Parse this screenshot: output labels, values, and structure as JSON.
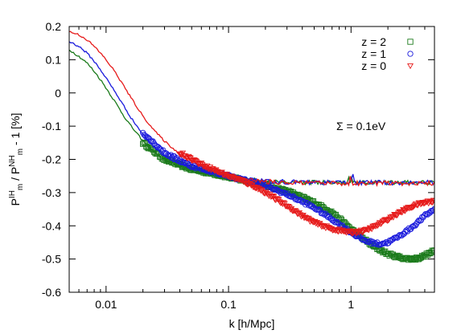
{
  "chart_data": {
    "type": "line",
    "xlabel": "k [h/Mpc]",
    "ylabel": {
      "base1": "P",
      "sub1": "m",
      "sup1": "IH",
      "mid": " / P",
      "sub2": "m",
      "sup2": "NH",
      "tail": " - 1 [%]"
    },
    "xscale": "log",
    "xlim": [
      0.005,
      4.8
    ],
    "ylim": [
      -0.6,
      0.2
    ],
    "xticks": [
      {
        "value": 0.01,
        "label": "0.01"
      },
      {
        "value": 0.1,
        "label": "0.1"
      },
      {
        "value": 1,
        "label": "1"
      }
    ],
    "yticks": [
      {
        "value": 0.2,
        "label": "0.2"
      },
      {
        "value": 0.1,
        "label": "0.1"
      },
      {
        "value": 0,
        "label": "0"
      },
      {
        "value": -0.1,
        "label": "-0.1"
      },
      {
        "value": -0.2,
        "label": "-0.2"
      },
      {
        "value": -0.3,
        "label": "-0.3"
      },
      {
        "value": -0.4,
        "label": "-0.4"
      },
      {
        "value": -0.5,
        "label": "-0.5"
      },
      {
        "value": -0.6,
        "label": "-0.6"
      }
    ],
    "grid": false,
    "legend_position": "top-right",
    "annotation": "Σ = 0.1eV",
    "series": [
      {
        "name": "z = 2",
        "color": "#1a7a1a",
        "marker": "square",
        "linear": {
          "x": [
            0.005,
            0.006,
            0.007,
            0.008,
            0.009,
            0.01,
            0.012,
            0.014,
            0.016,
            0.02,
            0.025,
            0.03,
            0.04,
            0.05,
            0.07,
            0.1,
            0.15,
            0.2,
            0.3,
            0.5,
            1,
            2,
            3,
            4.8
          ],
          "y": [
            0.13,
            0.11,
            0.09,
            0.065,
            0.04,
            0.015,
            -0.03,
            -0.07,
            -0.1,
            -0.145,
            -0.18,
            -0.2,
            -0.225,
            -0.235,
            -0.245,
            -0.255,
            -0.262,
            -0.265,
            -0.268,
            -0.27,
            -0.27,
            -0.27,
            -0.27,
            -0.27
          ]
        },
        "nonlinear": {
          "x": [
            0.02,
            0.03,
            0.05,
            0.08,
            0.12,
            0.16,
            0.2,
            0.3,
            0.5,
            0.7,
            1,
            1.5,
            2,
            2.5,
            3,
            3.5,
            4,
            4.8
          ],
          "y": [
            -0.15,
            -0.2,
            -0.23,
            -0.245,
            -0.26,
            -0.27,
            -0.278,
            -0.295,
            -0.33,
            -0.36,
            -0.41,
            -0.46,
            -0.485,
            -0.495,
            -0.5,
            -0.498,
            -0.49,
            -0.475
          ]
        }
      },
      {
        "name": "z = 1",
        "color": "#1a1adc",
        "marker": "circle",
        "linear": {
          "x": [
            0.005,
            0.006,
            0.007,
            0.008,
            0.009,
            0.01,
            0.012,
            0.014,
            0.016,
            0.02,
            0.025,
            0.03,
            0.04,
            0.05,
            0.07,
            0.1,
            0.15,
            0.2,
            0.3,
            0.5,
            1,
            2,
            3,
            4.8
          ],
          "y": [
            0.155,
            0.14,
            0.12,
            0.095,
            0.07,
            0.045,
            0.0,
            -0.04,
            -0.075,
            -0.125,
            -0.165,
            -0.19,
            -0.215,
            -0.228,
            -0.24,
            -0.253,
            -0.262,
            -0.266,
            -0.268,
            -0.27,
            -0.27,
            -0.27,
            -0.27,
            -0.27
          ]
        },
        "nonlinear": {
          "x": [
            0.02,
            0.03,
            0.05,
            0.08,
            0.12,
            0.16,
            0.2,
            0.3,
            0.5,
            0.7,
            1,
            1.3,
            1.7,
            2,
            2.5,
            3,
            3.5,
            4,
            4.8
          ],
          "y": [
            -0.12,
            -0.18,
            -0.22,
            -0.24,
            -0.258,
            -0.27,
            -0.28,
            -0.305,
            -0.345,
            -0.38,
            -0.42,
            -0.445,
            -0.455,
            -0.45,
            -0.43,
            -0.41,
            -0.39,
            -0.37,
            -0.35
          ]
        }
      },
      {
        "name": "z = 0",
        "color": "#e61a1a",
        "marker": "triangle-down",
        "linear": {
          "x": [
            0.005,
            0.006,
            0.007,
            0.008,
            0.009,
            0.01,
            0.012,
            0.014,
            0.016,
            0.02,
            0.025,
            0.03,
            0.04,
            0.05,
            0.07,
            0.1,
            0.15,
            0.2,
            0.3,
            0.5,
            1,
            2,
            3,
            4.8
          ],
          "y": [
            0.185,
            0.175,
            0.16,
            0.14,
            0.12,
            0.1,
            0.06,
            0.02,
            -0.015,
            -0.07,
            -0.115,
            -0.145,
            -0.185,
            -0.205,
            -0.23,
            -0.25,
            -0.262,
            -0.267,
            -0.27,
            -0.272,
            -0.272,
            -0.272,
            -0.272,
            -0.272
          ]
        },
        "nonlinear": {
          "x": [
            0.04,
            0.06,
            0.08,
            0.1,
            0.13,
            0.16,
            0.2,
            0.3,
            0.4,
            0.5,
            0.7,
            1,
            1.3,
            1.6,
            2,
            2.5,
            3,
            3.5,
            4,
            4.8
          ],
          "y": [
            -0.18,
            -0.215,
            -0.235,
            -0.25,
            -0.265,
            -0.28,
            -0.3,
            -0.34,
            -0.37,
            -0.39,
            -0.41,
            -0.42,
            -0.415,
            -0.4,
            -0.38,
            -0.36,
            -0.345,
            -0.335,
            -0.33,
            -0.325
          ]
        }
      }
    ]
  }
}
